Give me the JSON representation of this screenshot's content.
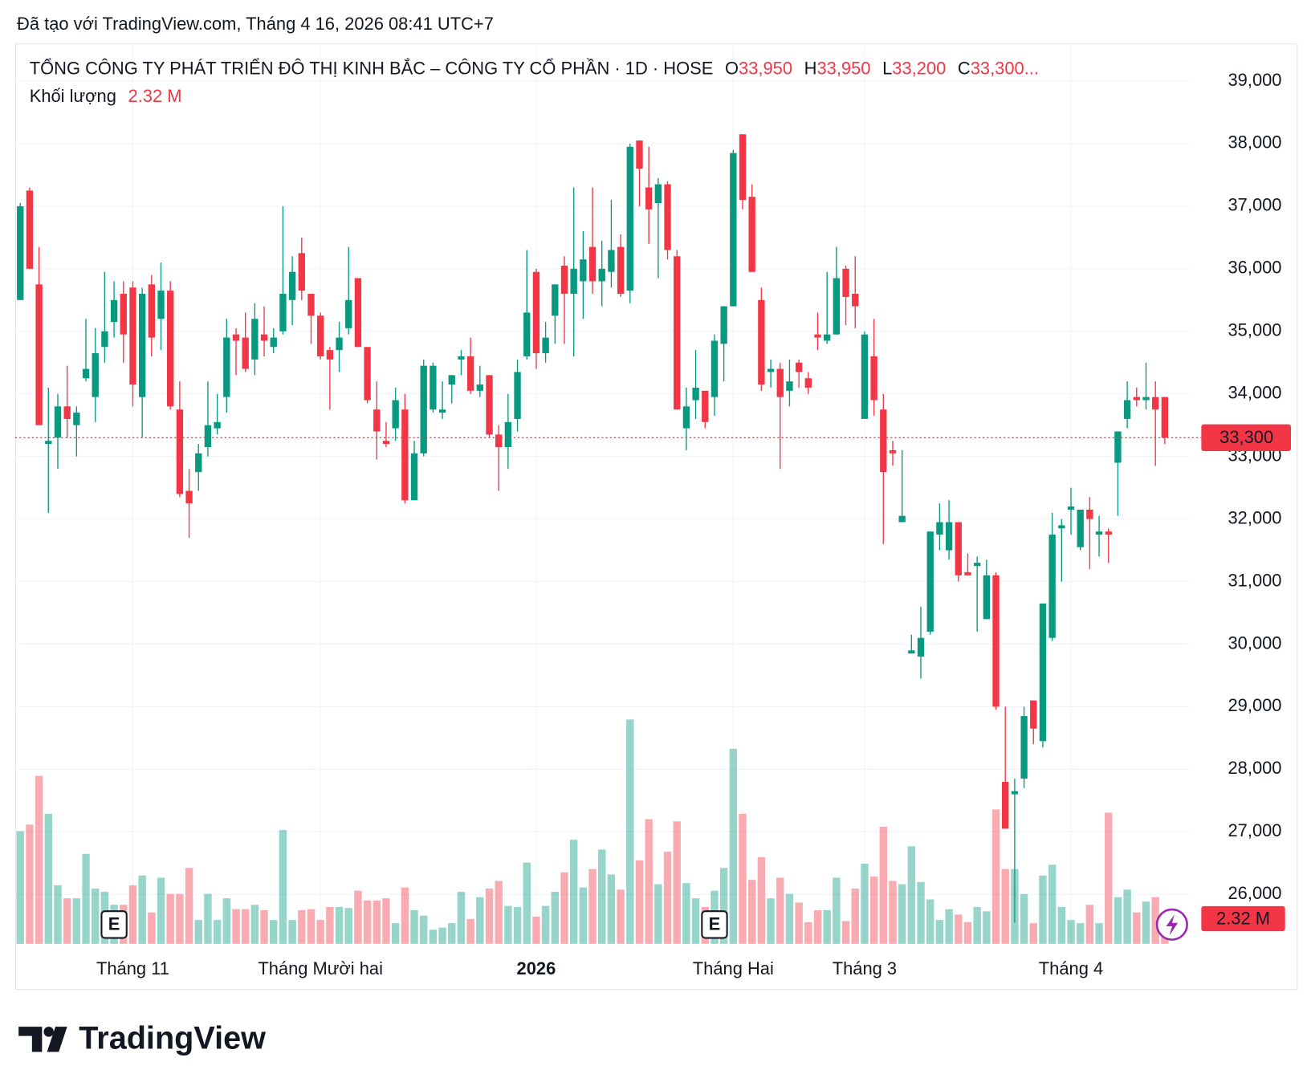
{
  "header": "Đã tạo với TradingView.com, Tháng 4 16, 2026 08:41 UTC+7",
  "footer": {
    "brand": "TradingView"
  },
  "chart_data": {
    "type": "candlestick",
    "legend": {
      "symbol": "TỔNG CÔNG TY PHÁT TRIỂN ĐÔ THỊ KINH BẮC – CÔNG TY CỔ PHẦN · 1D · HOSE",
      "items": [
        {
          "label": "O",
          "value": "33,950"
        },
        {
          "label": "H",
          "value": "33,950"
        },
        {
          "label": "L",
          "value": "33,200"
        },
        {
          "label": "C",
          "value": "33,300..."
        }
      ],
      "volume_label": "Khối lượng",
      "volume_value": "2.32 M"
    },
    "last_price_label": "33,300",
    "up_color": "#089981",
    "down_color": "#f23645",
    "ylim": [
      25210,
      39600
    ],
    "yticks": [
      {
        "value": 26000,
        "label": "26,000"
      },
      {
        "value": 27000,
        "label": "27,000"
      },
      {
        "value": 28000,
        "label": "28,000"
      },
      {
        "value": 29000,
        "label": "29,000"
      },
      {
        "value": 30000,
        "label": "30,000"
      },
      {
        "value": 31000,
        "label": "31,000"
      },
      {
        "value": 32000,
        "label": "32,000"
      },
      {
        "value": 33000,
        "label": "33,000"
      },
      {
        "value": 34000,
        "label": "34,000"
      },
      {
        "value": 35000,
        "label": "35,000"
      },
      {
        "value": 36000,
        "label": "36,000"
      },
      {
        "value": 37000,
        "label": "37,000"
      },
      {
        "value": 38000,
        "label": "38,000"
      },
      {
        "value": 39000,
        "label": "39,000"
      }
    ],
    "xticks": [
      {
        "value": 12,
        "label": "Tháng 11"
      },
      {
        "value": 32,
        "label": "Tháng Mười hai"
      },
      {
        "value": 55,
        "label": "2026",
        "emphasis": true
      },
      {
        "value": 76,
        "label": "Tháng Hai"
      },
      {
        "value": 90,
        "label": "Tháng 3"
      },
      {
        "value": 112,
        "label": "Tháng 4"
      }
    ],
    "events": [
      {
        "index": 10,
        "label": "E"
      },
      {
        "index": 74,
        "label": "E"
      }
    ],
    "grid": true,
    "open": [
      35500,
      37250,
      35750,
      33200,
      33300,
      33800,
      33500,
      34250,
      33950,
      34750,
      35150,
      35600,
      35700,
      33950,
      35750,
      35200,
      35650,
      33750,
      32450,
      32750,
      33150,
      33450,
      33950,
      34950,
      34900,
      34550,
      34950,
      34750,
      35000,
      35500,
      36250,
      35600,
      35250,
      34700,
      34700,
      35050,
      35850,
      34750,
      33750,
      33250,
      33450,
      33750,
      32300,
      33050,
      33750,
      33700,
      34150,
      34550,
      34600,
      34050,
      34300,
      33350,
      33150,
      33600,
      34600,
      35950,
      34650,
      35250,
      36050,
      35600,
      35800,
      36350,
      35800,
      35950,
      36350,
      35650,
      38050,
      37300,
      37050,
      37350,
      36200,
      33450,
      33900,
      34050,
      33950,
      34800,
      35400,
      38150,
      37150,
      35500,
      34350,
      34400,
      34050,
      34500,
      34250,
      34950,
      34850,
      34950,
      36000,
      35600,
      33600,
      34600,
      33750,
      33100,
      31950,
      29850,
      29800,
      30200,
      31750,
      31500,
      31950,
      31150,
      31250,
      30400,
      31100,
      27800,
      27600,
      27850,
      29100,
      28450,
      30100,
      31850,
      32150,
      31550,
      32150,
      31750,
      31800,
      32900,
      33600,
      33950,
      33900,
      33950,
      33950
    ],
    "high": [
      37050,
      37300,
      36350,
      34100,
      34000,
      34450,
      33800,
      35200,
      35050,
      35950,
      35800,
      35800,
      35800,
      35700,
      35900,
      36100,
      35800,
      34200,
      32800,
      33200,
      34200,
      34000,
      35200,
      35050,
      35300,
      35450,
      35400,
      35050,
      37000,
      36200,
      36500,
      35600,
      35300,
      34750,
      35150,
      36350,
      35850,
      34750,
      34200,
      33550,
      34100,
      34000,
      33250,
      34550,
      34500,
      34200,
      34300,
      34700,
      34900,
      34450,
      34300,
      33500,
      34000,
      34550,
      36300,
      36000,
      35150,
      35750,
      36200,
      37300,
      36600,
      37300,
      36450,
      37100,
      36550,
      38000,
      38050,
      37950,
      37450,
      37400,
      36300,
      34100,
      34700,
      34050,
      34950,
      35400,
      37900,
      38150,
      37350,
      35700,
      34550,
      34500,
      34550,
      34550,
      34350,
      35300,
      35950,
      36350,
      36050,
      36200,
      35000,
      35200,
      34000,
      33250,
      33100,
      30150,
      30600,
      31800,
      32250,
      32300,
      31950,
      31450,
      31400,
      31350,
      31150,
      29000,
      27850,
      29000,
      29100,
      30650,
      32100,
      32000,
      32500,
      32150,
      32350,
      32050,
      31850,
      33400,
      34200,
      34100,
      34500,
      34200,
      33950
    ],
    "low": [
      35500,
      36000,
      33500,
      32100,
      32800,
      33300,
      33000,
      34200,
      33550,
      34500,
      34900,
      34500,
      33800,
      33300,
      34600,
      34700,
      33750,
      32350,
      31700,
      32450,
      33000,
      33350,
      33700,
      34300,
      34350,
      34300,
      34600,
      34650,
      34950,
      35100,
      35500,
      34800,
      34550,
      33750,
      34350,
      34950,
      34750,
      33850,
      32950,
      33150,
      33250,
      32250,
      32300,
      33000,
      33700,
      33600,
      33850,
      34300,
      34000,
      33950,
      33300,
      32450,
      32800,
      33400,
      34550,
      34400,
      34500,
      34800,
      34800,
      34600,
      35200,
      35600,
      35400,
      35700,
      35550,
      35450,
      37000,
      36400,
      35850,
      36150,
      33750,
      33100,
      33600,
      33450,
      33650,
      34200,
      35400,
      36950,
      35950,
      34050,
      34100,
      32800,
      33800,
      34100,
      34000,
      34700,
      34800,
      34950,
      35100,
      35050,
      33600,
      33650,
      31600,
      32850,
      31950,
      29850,
      29450,
      30150,
      31500,
      31350,
      31000,
      31100,
      30200,
      30400,
      28950,
      27050,
      25550,
      27700,
      28400,
      28350,
      30050,
      31000,
      31750,
      31500,
      31200,
      31400,
      31300,
      32050,
      33450,
      33800,
      33750,
      32850,
      33200
    ],
    "close": [
      37000,
      36000,
      33500,
      33250,
      33800,
      33600,
      33700,
      34400,
      34650,
      35000,
      35500,
      34950,
      34150,
      35600,
      34900,
      35650,
      33800,
      32400,
      32250,
      33050,
      33500,
      33550,
      34900,
      34850,
      34400,
      35200,
      34850,
      34900,
      35600,
      35950,
      35650,
      35250,
      34600,
      34550,
      34900,
      35500,
      34750,
      33900,
      33400,
      33200,
      33900,
      32300,
      33050,
      34450,
      34450,
      33750,
      34300,
      34600,
      34050,
      34150,
      33350,
      33150,
      33550,
      34350,
      35300,
      34650,
      34900,
      35750,
      35600,
      36000,
      36150,
      35800,
      36000,
      36300,
      35600,
      37950,
      37600,
      36950,
      37350,
      36300,
      33750,
      33800,
      34100,
      33550,
      34850,
      35400,
      37850,
      37100,
      35950,
      34150,
      34400,
      33950,
      34200,
      34350,
      34100,
      34900,
      34950,
      35850,
      35550,
      35400,
      34950,
      33900,
      32750,
      33050,
      32050,
      29900,
      30100,
      31800,
      31950,
      31950,
      31100,
      31100,
      31300,
      31100,
      29000,
      27050,
      27650,
      28850,
      28650,
      30650,
      31750,
      31900,
      32200,
      32150,
      32000,
      31800,
      31750,
      33400,
      33900,
      33900,
      33950,
      33750,
      33300
    ],
    "volume": [
      10.4,
      11.0,
      15.5,
      12.0,
      5.4,
      4.2,
      4.2,
      8.3,
      5.1,
      4.8,
      3.6,
      3.6,
      5.4,
      6.3,
      2.9,
      6.1,
      4.6,
      4.6,
      7.0,
      2.2,
      4.6,
      2.2,
      4.2,
      3.2,
      3.2,
      3.6,
      3.1,
      2.2,
      10.5,
      2.2,
      3.1,
      3.2,
      2.2,
      3.4,
      3.4,
      3.3,
      4.9,
      4.0,
      4.0,
      4.2,
      1.9,
      5.2,
      3.1,
      2.6,
      1.3,
      1.5,
      1.9,
      4.8,
      2.3,
      4.3,
      5.1,
      5.8,
      3.5,
      3.4,
      7.5,
      2.5,
      3.5,
      4.8,
      6.6,
      9.6,
      5.2,
      6.9,
      8.7,
      6.4,
      5.0,
      20.7,
      7.7,
      11.5,
      5.5,
      8.5,
      11.3,
      5.6,
      4.2,
      3.4,
      4.9,
      7.0,
      18.0,
      12.0,
      5.9,
      8.0,
      4.2,
      6.1,
      4.6,
      3.8,
      2.0,
      3.1,
      3.1,
      6.1,
      2.1,
      5.1,
      7.4,
      6.2,
      10.8,
      5.8,
      5.5,
      9.0,
      5.7,
      4.1,
      2.2,
      3.2,
      2.7,
      2.0,
      3.4,
      3.0,
      12.4,
      6.9,
      6.9,
      4.6,
      1.9,
      6.3,
      7.3,
      3.4,
      2.2,
      1.9,
      3.6,
      1.9,
      12.1,
      4.3,
      5.0,
      2.9,
      3.9,
      4.3,
      2.32
    ]
  }
}
